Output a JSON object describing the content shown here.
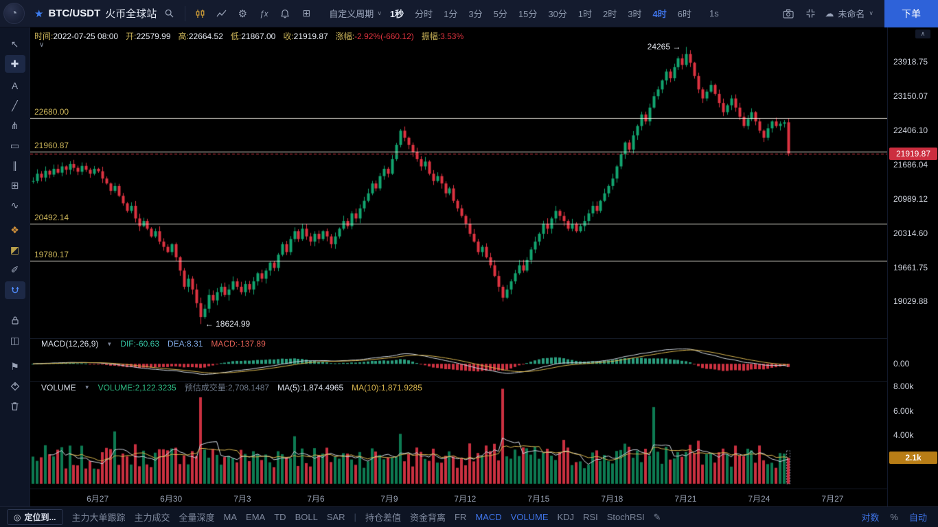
{
  "colors": {
    "up": "#12a46f",
    "down": "#dd3341",
    "accent_blue": "#3f74e8",
    "macd_up": "#2b9d7e",
    "macd_down": "#cf3241",
    "vol_up": "#0d7a52",
    "vol_down": "#c93040",
    "line_white": "rgba(245,243,232,0.9)",
    "ma_fast": "#cfd6df",
    "ma_slow": "#d9b64e",
    "price_badge_bg": "#cc2e3f",
    "vol_badge_bg": "#b87d16",
    "yellow_label": "#cdb65a"
  },
  "top_bar": {
    "symbol": "BTC/USDT",
    "market": "火币全球站",
    "chart_icons": [
      {
        "name": "kline-style-icon",
        "kind": "kline"
      },
      {
        "name": "compare-icon",
        "kind": "chart"
      },
      {
        "name": "settings-icon",
        "kind": "gear"
      },
      {
        "name": "indicators-icon",
        "kind": "fx"
      },
      {
        "name": "alert-icon",
        "kind": "bell"
      },
      {
        "name": "layout-icon",
        "kind": "grid"
      }
    ],
    "period_menu": "自定义周期",
    "timeframes": [
      "1秒",
      "分时",
      "1分",
      "3分",
      "5分",
      "15分",
      "30分",
      "1时",
      "2时",
      "3时",
      "4时",
      "6时"
    ],
    "active_timeframe": "4时",
    "emphasized_timeframe": "1秒",
    "sec_label": "1s",
    "layout_name": "未命名",
    "order_button": "下单"
  },
  "left_toolbar": {
    "tools": [
      {
        "name": "cursor-tool",
        "glyph": "↖"
      },
      {
        "name": "crosshair-tool",
        "glyph": "✚",
        "active": true
      },
      {
        "name": "text-tool",
        "glyph": "A",
        "gap": 6
      },
      {
        "name": "trendline-tool",
        "glyph": "╱"
      },
      {
        "name": "pitchfork-tool",
        "glyph": "⋔"
      },
      {
        "name": "rectangle-tool",
        "glyph": "▭"
      },
      {
        "name": "channel-tool",
        "glyph": "∥"
      },
      {
        "name": "grid-tool",
        "glyph": "⊞"
      },
      {
        "name": "wave-tool",
        "glyph": "∿"
      },
      {
        "name": "brush-tool",
        "glyph": "❖",
        "tint": "#cf8f3a",
        "gap": 10
      },
      {
        "name": "pattern-tool",
        "glyph": "◩",
        "tint": "#b9a04b"
      },
      {
        "name": "ruler-tool",
        "glyph": "✐"
      },
      {
        "name": "magnet-tool",
        "shape": "magnet",
        "active_blue": true,
        "gap": 4
      },
      {
        "name": "lock-tool",
        "shape": "lock",
        "gap": 18
      },
      {
        "name": "layers-tool",
        "glyph": "◫"
      },
      {
        "name": "flag-tool",
        "glyph": "⚑",
        "gap": 12
      },
      {
        "name": "rename-tool",
        "shape": "tag"
      },
      {
        "name": "trash-tool",
        "shape": "trash"
      }
    ]
  },
  "info_bar": {
    "items": [
      {
        "label": "时间:",
        "value": "2022-07-25 08:00",
        "cls": "default"
      },
      {
        "label": "开:",
        "value": "22579.99",
        "cls": "default"
      },
      {
        "label": "高:",
        "value": "22664.52",
        "cls": "default"
      },
      {
        "label": "低:",
        "value": "21867.00",
        "cls": "default"
      },
      {
        "label": "收:",
        "value": "21919.87",
        "cls": "default"
      },
      {
        "label": "涨幅:",
        "value": "-2.92%(-660.12)",
        "cls": "down"
      },
      {
        "label": "振幅:",
        "value": "3.53%",
        "cls": "down"
      }
    ]
  },
  "macd_panel": {
    "title": "MACD(12,26,9)",
    "values": [
      {
        "text": "DIF:-60.63",
        "cls": "dif"
      },
      {
        "text": "DEA:8.31",
        "cls": "dea"
      },
      {
        "text": "MACD:-137.89",
        "cls": "macdv"
      }
    ],
    "zero_label": "0.00"
  },
  "volume_panel": {
    "title": "VOLUME",
    "values": [
      {
        "text": "VOLUME:2,122.3235",
        "cls": "volv"
      },
      {
        "text": "预估成交量:2,708.1487",
        "cls": "est"
      },
      {
        "text": "MA(5):1,874.4965",
        "cls": "ma5"
      },
      {
        "text": "MA(10):1,871.9285",
        "cls": "ma10"
      }
    ],
    "axis": [
      {
        "label": "8.00k",
        "value": 8000
      },
      {
        "label": "6.00k",
        "value": 6000
      },
      {
        "label": "4.00k",
        "value": 4000
      }
    ],
    "current_badge": "2.1k"
  },
  "bottom_bar": {
    "locate_button": "定位到...",
    "left_items": [
      "主力大单跟踪",
      "主力成交",
      "全量深度",
      "MA",
      "EMA",
      "TD",
      "BOLL",
      "SAR"
    ],
    "right_items": [
      {
        "label": "持仓差值"
      },
      {
        "label": "资金背离"
      },
      {
        "label": "FR"
      },
      {
        "label": "MACD",
        "active": true
      },
      {
        "label": "VOLUME",
        "active": true
      },
      {
        "label": "KDJ"
      },
      {
        "label": "RSI"
      },
      {
        "label": "StochRSI"
      }
    ],
    "scale_items": [
      {
        "label": "对数",
        "active": true
      },
      {
        "label": "%"
      },
      {
        "label": "自动",
        "active": true
      }
    ]
  },
  "chart_data": {
    "type": "candlestick",
    "symbol": "BTC/USDT",
    "interval": "4时",
    "scale": "log",
    "time_span": [
      "2022-06-24 16:00",
      "2022-07-25 08:00"
    ],
    "price_range": [
      18410,
      24720
    ],
    "current_price": 21919.87,
    "current_price_label": "21919.87",
    "session_high": 24265,
    "session_low": 18624.99,
    "closes": [
      21350,
      21500,
      21420,
      21560,
      21480,
      21600,
      21520,
      21650,
      21580,
      21700,
      21620,
      21540,
      21660,
      21580,
      21500,
      21600,
      21550,
      21400,
      21300,
      21150,
      21250,
      21050,
      20900,
      20750,
      20850,
      20600,
      20450,
      20550,
      20400,
      20250,
      20350,
      20150,
      20050,
      19950,
      20100,
      19850,
      19600,
      19300,
      19450,
      19250,
      19000,
      18750,
      18900,
      19150,
      19050,
      19200,
      19300,
      19150,
      19250,
      19400,
      19300,
      19200,
      19350,
      19250,
      19400,
      19550,
      19450,
      19600,
      19750,
      19650,
      19900,
      20100,
      19950,
      20200,
      20350,
      20200,
      20400,
      20250,
      20150,
      20300,
      20200,
      20350,
      20250,
      20100,
      20250,
      20400,
      20550,
      20450,
      20700,
      20600,
      20800,
      20950,
      21100,
      21300,
      21200,
      21450,
      21600,
      21500,
      21800,
      22100,
      22400,
      22250,
      22100,
      21950,
      21800,
      21650,
      21750,
      21500,
      21350,
      21450,
      21300,
      21100,
      21200,
      20950,
      20800,
      20650,
      20500,
      20300,
      20150,
      19950,
      20050,
      19850,
      19700,
      19500,
      19300,
      19100,
      19250,
      19400,
      19550,
      19700,
      19600,
      19800,
      20000,
      20150,
      20300,
      20500,
      20400,
      20600,
      20750,
      20650,
      20550,
      20400,
      20500,
      20350,
      20450,
      20550,
      20700,
      20850,
      20750,
      20950,
      21100,
      21250,
      21400,
      21650,
      21900,
      22150,
      22000,
      22300,
      22500,
      22750,
      22600,
      22900,
      23150,
      23300,
      23500,
      23700,
      23550,
      23800,
      24000,
      23850,
      24100,
      23900,
      23600,
      23300,
      23100,
      23250,
      23400,
      23200,
      23000,
      22800,
      22950,
      23100,
      22900,
      22700,
      22500,
      22650,
      22800,
      22600,
      22400,
      22250,
      22450,
      22600,
      22500,
      22550,
      22580,
      21919.87
    ],
    "wick_overrides": {
      "41": {
        "low": 18624.99
      },
      "160": {
        "high": 24265
      },
      "185": {
        "open": 22579.99,
        "high": 22664.52,
        "low": 21867.0,
        "close": 21919.87
      }
    },
    "horizontal_lines": [
      {
        "price": 22680.0,
        "label": "22680.00"
      },
      {
        "price": 21960.87,
        "label": "21960.87"
      },
      {
        "price": 20492.14,
        "label": "20492.14"
      },
      {
        "price": 19780.17,
        "label": "19780.17"
      }
    ],
    "y_ticks": [
      {
        "label": "23918.75",
        "value": 23918.75
      },
      {
        "label": "23150.07",
        "value": 23150.07
      },
      {
        "label": "22406.10",
        "value": 22406.1
      },
      {
        "label": "21686.04",
        "value": 21686.04
      },
      {
        "label": "20989.12",
        "value": 20989.12
      },
      {
        "label": "20314.60",
        "value": 20314.6
      },
      {
        "label": "19661.75",
        "value": 19661.75
      },
      {
        "label": "19029.88",
        "value": 19029.88
      }
    ],
    "x_ticks": [
      {
        "label": "6月27",
        "index": 16
      },
      {
        "label": "6月30",
        "index": 34
      },
      {
        "label": "7月3",
        "index": 52
      },
      {
        "label": "7月6",
        "index": 70
      },
      {
        "label": "7月9",
        "index": 88
      },
      {
        "label": "7月12",
        "index": 106
      },
      {
        "label": "7月15",
        "index": 124
      },
      {
        "label": "7月18",
        "index": 142
      },
      {
        "label": "7月21",
        "index": 160
      },
      {
        "label": "7月24",
        "index": 178
      },
      {
        "label": "7月27",
        "index": 196
      }
    ],
    "annotations": {
      "high_label": "24265 →",
      "high_index": 160,
      "high_price": 24265,
      "low_label": "← 18624.99",
      "low_index": 41,
      "low_price": 18624.99
    },
    "macd": {
      "dif": -60.63,
      "dea": 8.31,
      "macd": -137.89,
      "params": [
        12,
        26,
        9
      ]
    },
    "volume": {
      "seed": 7,
      "base": 950,
      "rand": 1900,
      "spikes": {
        "20": 4300,
        "41": 7100,
        "64": 3900,
        "90": 4100,
        "115": 7800,
        "130": 3600,
        "152": 6300
      },
      "last": 2122.3235,
      "estimated": 2708.1487,
      "axis_max": 8000
    }
  }
}
